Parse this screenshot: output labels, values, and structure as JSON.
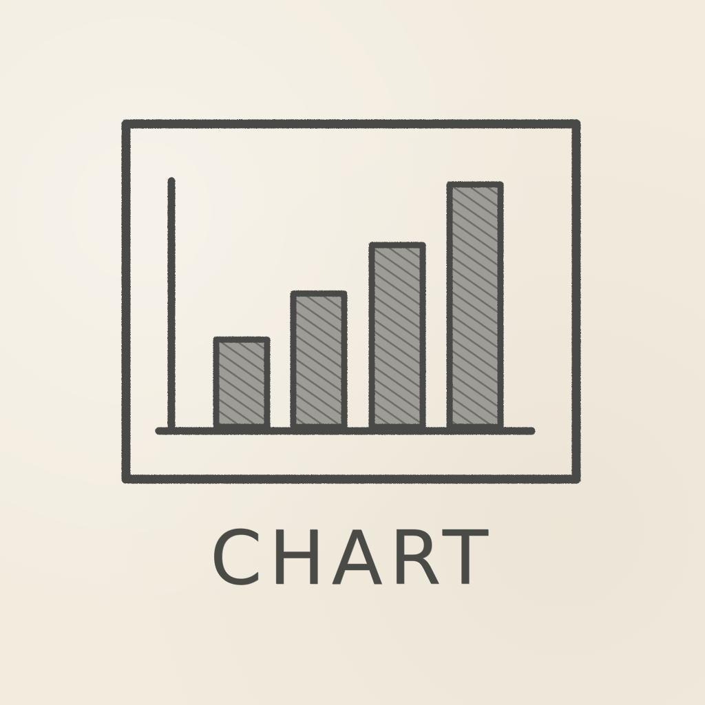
{
  "caption": {
    "text": "CHART"
  },
  "icon": {
    "name": "bar-chart-icon",
    "bars": [
      0.36,
      0.55,
      0.75,
      1.0
    ]
  },
  "colors": {
    "paper": "#f2ecdf",
    "pencil": "#4a4a47",
    "hatch": "#7a7a75"
  }
}
